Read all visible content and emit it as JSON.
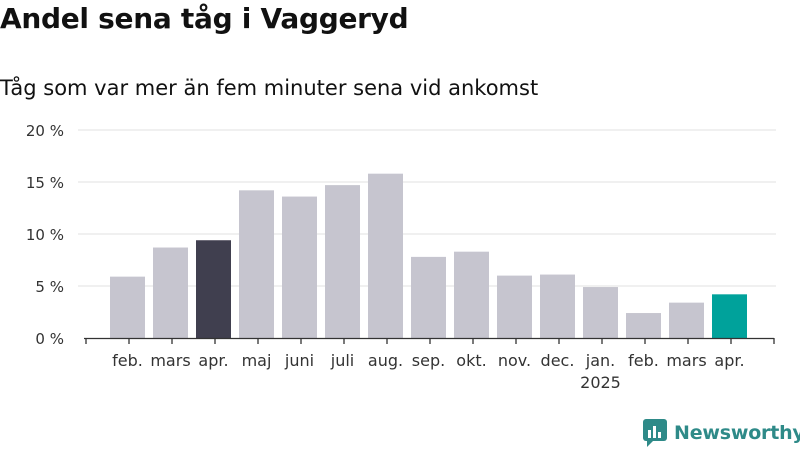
{
  "header": {
    "title": "Andel sena tåg i Vaggeryd",
    "subtitle": "Tåg som var mer än fem minuter sena vid ankomst"
  },
  "brand": {
    "name": "Newsworthy",
    "color": "#2e8a88"
  },
  "colors": {
    "bar_default": "#c6c5cf",
    "bar_prev_year": "#403f4f",
    "bar_latest": "#00a29b",
    "grid": "#e0e0e0",
    "axis": "#333333"
  },
  "chart_data": {
    "type": "bar",
    "categories": [
      "feb.",
      "mars",
      "apr.",
      "maj",
      "juni",
      "juli",
      "aug.",
      "sep.",
      "okt.",
      "nov.",
      "dec.",
      "jan.",
      "feb.",
      "mars",
      "apr."
    ],
    "year_labels": {
      "11": "2025"
    },
    "values": [
      5.9,
      8.7,
      9.4,
      14.2,
      13.6,
      14.7,
      15.8,
      7.8,
      8.3,
      6.0,
      6.1,
      4.9,
      2.4,
      3.4,
      4.2
    ],
    "highlight": {
      "2": "bar_prev_year",
      "14": "bar_latest"
    },
    "yticks": [
      "0 %",
      "5 %",
      "10 %",
      "15 %",
      "20 %"
    ],
    "ylim": [
      0,
      20
    ],
    "grid": true
  }
}
